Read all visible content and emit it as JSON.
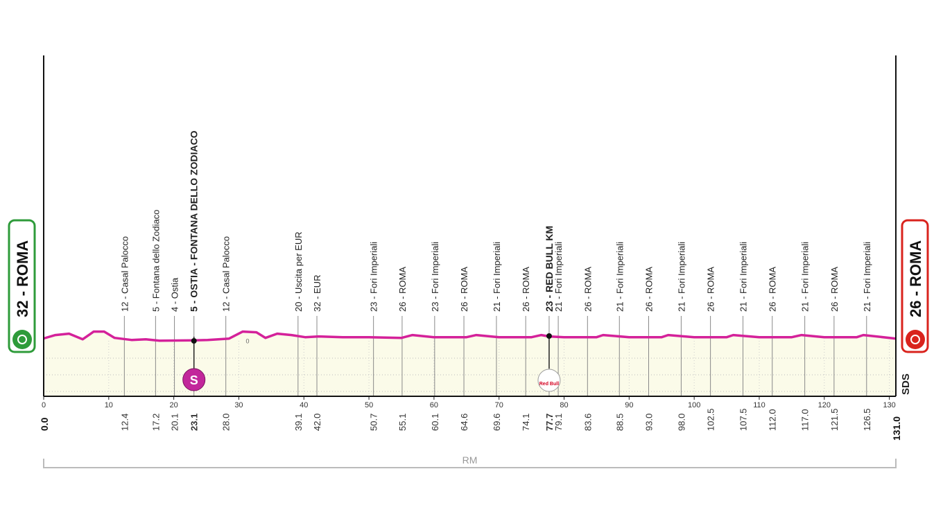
{
  "chart_data": {
    "type": "profile",
    "color": "#d4219a",
    "xlim": [
      0,
      131
    ],
    "xticks": [
      0,
      10,
      20,
      30,
      40,
      50,
      60,
      70,
      80,
      90,
      100,
      110,
      120,
      130
    ],
    "ylim": [
      -800,
      4100
    ],
    "yticks": [
      0
    ],
    "x": [
      0,
      1.8,
      3.9,
      6.0,
      7.7,
      9.3,
      10.9,
      13.5,
      15.7,
      17.8,
      23.1,
      25.2,
      28.5,
      30.6,
      32.7,
      34.1,
      35.9,
      38.1,
      40.2,
      42.3,
      46,
      50,
      55,
      56.7,
      60,
      65,
      66.5,
      70,
      75,
      76.5,
      77.7,
      80,
      85,
      86,
      90,
      95,
      96,
      100,
      105,
      106,
      110,
      115,
      116.5,
      120,
      125,
      126,
      131
    ],
    "values": [
      32,
      80,
      100,
      20,
      130,
      130,
      40,
      10,
      20,
      0,
      5,
      10,
      30,
      130,
      120,
      40,
      100,
      80,
      50,
      60,
      50,
      50,
      40,
      80,
      50,
      50,
      80,
      50,
      50,
      80,
      60,
      50,
      50,
      80,
      50,
      50,
      80,
      50,
      50,
      80,
      50,
      50,
      80,
      50,
      50,
      80,
      30
    ],
    "start": {
      "label": "32 - ROMA",
      "km": {
        "value": 0,
        "label": "0.0"
      }
    },
    "finish": {
      "label": "26 - ROMA",
      "km": {
        "value": 131,
        "label": "131.0"
      }
    },
    "waypoints": [
      {
        "km": 12.4,
        "label": "12 - Casal Palocco"
      },
      {
        "km": 17.2,
        "label": "5 - Fontana dello Zodiaco"
      },
      {
        "km": 20.1,
        "label": "4 - Ostia"
      },
      {
        "km": 23.1,
        "label": "5 - OSTIA - FONTANA DELLO ZODIACO",
        "highlight": true
      },
      {
        "km": {
          "value": 28,
          "label": "28.0"
        },
        "label": "12 - Casal Palocco"
      },
      {
        "km": 39.1,
        "label": "20 - Uscita per EUR"
      },
      {
        "km": {
          "value": 42,
          "label": "42.0"
        },
        "label": "32 - EUR"
      },
      {
        "km": 50.7,
        "label": "23 - Fori Imperiali"
      },
      {
        "km": 55.1,
        "label": "26 - ROMA"
      },
      {
        "km": 60.1,
        "label": "23 - Fori Imperiali"
      },
      {
        "km": 64.6,
        "label": "26 - ROMA"
      },
      {
        "km": 69.6,
        "label": "21 - Fori Imperiali"
      },
      {
        "km": 74.1,
        "label": "26 - ROMA"
      },
      {
        "km": 77.7,
        "label": "23 - RED BULL KM",
        "highlight": true
      },
      {
        "km": 79.1,
        "label": "21 - Fori Imperiali"
      },
      {
        "km": 83.6,
        "label": "26 - ROMA"
      },
      {
        "km": 88.5,
        "label": "21 - Fori Imperiali"
      },
      {
        "km": {
          "value": 93,
          "label": "93.0"
        },
        "label": "26 - ROMA"
      },
      {
        "km": {
          "value": 98,
          "label": "98.0"
        },
        "label": "21 - Fori Imperiali"
      },
      {
        "km": 102.5,
        "label": "26 - ROMA"
      },
      {
        "km": 107.5,
        "label": "21 - Fori Imperiali"
      },
      {
        "km": {
          "value": 112,
          "label": "112.0"
        },
        "label": "26 - ROMA"
      },
      {
        "km": {
          "value": 117,
          "label": "117.0"
        },
        "label": "21 - Fori Imperiali"
      },
      {
        "km": 121.5,
        "label": "26 - ROMA"
      },
      {
        "km": 126.5,
        "label": "21 - Fori Imperiali"
      }
    ],
    "sprint_badge": "S",
    "sponsor_badge": "Red Bull",
    "brand": "SDS",
    "province": "RM"
  }
}
